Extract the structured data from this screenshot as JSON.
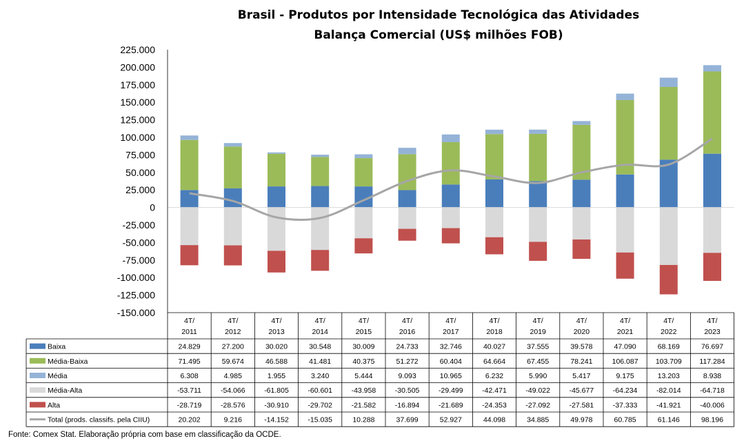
{
  "chart_data": {
    "type": "bar",
    "title": "Brasil - Produtos por Intensidade Tecnológica das Atividades",
    "subtitle": "Balança Comercial (US$ milhões FOB)",
    "categories": [
      "4T/ 2011",
      "4T/ 2012",
      "4T/ 2013",
      "4T/ 2014",
      "4T/ 2015",
      "4T/ 2016",
      "4T/ 2017",
      "4T/ 2018",
      "4T/ 2019",
      "4T/ 2020",
      "4T/ 2021",
      "4T/ 2022",
      "4T/ 2023"
    ],
    "category_lines": [
      [
        "4T/",
        "2011"
      ],
      [
        "4T/",
        "2012"
      ],
      [
        "4T/",
        "2013"
      ],
      [
        "4T/",
        "2014"
      ],
      [
        "4T/",
        "2015"
      ],
      [
        "4T/",
        "2016"
      ],
      [
        "4T/",
        "2017"
      ],
      [
        "4T/",
        "2018"
      ],
      [
        "4T/",
        "2019"
      ],
      [
        "4T/",
        "2020"
      ],
      [
        "4T/",
        "2021"
      ],
      [
        "4T/",
        "2022"
      ],
      [
        "4T/",
        "2023"
      ]
    ],
    "ylim": [
      -150000,
      225000
    ],
    "yticks": [
      225000,
      200000,
      175000,
      150000,
      125000,
      100000,
      75000,
      50000,
      25000,
      0,
      -25000,
      -50000,
      -75000,
      -100000,
      -125000,
      -150000
    ],
    "ytick_labels": [
      "225.000",
      "200.000",
      "175.000",
      "150.000",
      "125.000",
      "100.000",
      "75.000",
      "50.000",
      "25.000",
      "0",
      "-25.000",
      "-50.000",
      "-75.000",
      "-100.000",
      "-125.000",
      "-150.000"
    ],
    "grid": false,
    "legend": "data-table-below",
    "series": [
      {
        "name": "Baixa",
        "kind": "bar",
        "color": "#4a7ebb",
        "values": [
          24829,
          27200,
          30020,
          30548,
          30009,
          24733,
          32746,
          40027,
          37555,
          39578,
          47090,
          68169,
          76697
        ],
        "labels": [
          "24.829",
          "27.200",
          "30.020",
          "30.548",
          "30.009",
          "24.733",
          "32.746",
          "40.027",
          "37.555",
          "39.578",
          "47.090",
          "68.169",
          "76.697"
        ]
      },
      {
        "name": "Média-Baixa",
        "kind": "bar",
        "color": "#9bbb59",
        "values": [
          71495,
          59674,
          46588,
          41481,
          40375,
          51272,
          60404,
          64664,
          67455,
          78241,
          106087,
          103709,
          117284
        ],
        "labels": [
          "71.495",
          "59.674",
          "46.588",
          "41.481",
          "40.375",
          "51.272",
          "60.404",
          "64.664",
          "67.455",
          "78.241",
          "106.087",
          "103.709",
          "117.284"
        ]
      },
      {
        "name": "Média",
        "kind": "bar",
        "color": "#95b3d7",
        "values": [
          6308,
          4985,
          1955,
          3240,
          5444,
          9093,
          10965,
          6232,
          5990,
          5417,
          9175,
          13203,
          8938
        ],
        "labels": [
          "6.308",
          "4.985",
          "1.955",
          "3.240",
          "5.444",
          "9.093",
          "10.965",
          "6.232",
          "5.990",
          "5.417",
          "9.175",
          "13.203",
          "8.938"
        ]
      },
      {
        "name": "Média-Alta",
        "kind": "bar",
        "color": "#d9d9d9",
        "values": [
          -53711,
          -54066,
          -61805,
          -60601,
          -43958,
          -30505,
          -29499,
          -42471,
          -49022,
          -45677,
          -64234,
          -82014,
          -64718
        ],
        "labels": [
          "-53.711",
          "-54.066",
          "-61.805",
          "-60.601",
          "-43.958",
          "-30.505",
          "-29.499",
          "-42.471",
          "-49.022",
          "-45.677",
          "-64.234",
          "-82.014",
          "-64.718"
        ]
      },
      {
        "name": "Alta",
        "kind": "bar",
        "color": "#c0504d",
        "values": [
          -28719,
          -28576,
          -30910,
          -29702,
          -21582,
          -16894,
          -21689,
          -24353,
          -27092,
          -27581,
          -37333,
          -41921,
          -40006
        ],
        "labels": [
          "-28.719",
          "-28.576",
          "-30.910",
          "-29.702",
          "-21.582",
          "-16.894",
          "-21.689",
          "-24.353",
          "-27.092",
          "-27.581",
          "-37.333",
          "-41.921",
          "-40.006"
        ]
      },
      {
        "name": "Total (prods. classifs. pela CIIU)",
        "kind": "line",
        "color": "#a6a6a6",
        "values": [
          20202,
          9216,
          -14152,
          -15035,
          10288,
          37699,
          52927,
          44098,
          34885,
          49978,
          60785,
          61146,
          98196
        ],
        "labels": [
          "20.202",
          "9.216",
          "-14.152",
          "-15.035",
          "10.288",
          "37.699",
          "52.927",
          "44.098",
          "34.885",
          "49.978",
          "60.785",
          "61.146",
          "98.196"
        ]
      }
    ]
  },
  "footer": {
    "source": "Fonte:  Comex Stat. Elaboração própria com base em classificação da OCDE."
  }
}
